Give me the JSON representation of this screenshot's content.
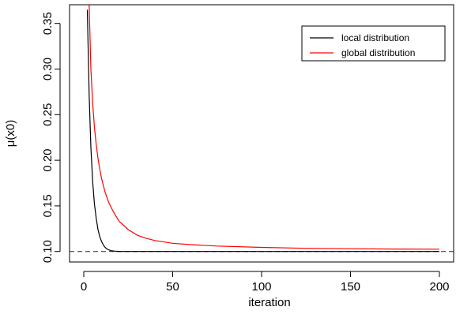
{
  "chart_data": {
    "type": "line",
    "title": "",
    "xlabel": "iteration",
    "ylabel": "μ(x0)",
    "xlim": [
      -8,
      208
    ],
    "ylim": [
      0.0885,
      0.3705
    ],
    "x_ticks": [
      0,
      50,
      100,
      150,
      200
    ],
    "x_tick_labels": [
      "0",
      "50",
      "100",
      "150",
      "200"
    ],
    "y_ticks": [
      0.1,
      0.15,
      0.2,
      0.25,
      0.3,
      0.35
    ],
    "y_tick_labels": [
      "0.10",
      "0.15",
      "0.20",
      "0.25",
      "0.30",
      "0.35"
    ],
    "grid": false,
    "legend_position": "top-right",
    "reference_line": {
      "y": 0.1,
      "color": "#3333cc",
      "style": "dashed"
    },
    "series": [
      {
        "name": "local distribution",
        "color": "#000000",
        "x": [
          2,
          3,
          4,
          5,
          6,
          7,
          8,
          9,
          10,
          11,
          12,
          13,
          14,
          15,
          16,
          17,
          18,
          20,
          25,
          30,
          40,
          50,
          75,
          100,
          125,
          150,
          175,
          200
        ],
        "y": [
          0.365,
          0.272,
          0.214,
          0.176,
          0.152,
          0.136,
          0.124,
          0.116,
          0.111,
          0.107,
          0.1045,
          0.1028,
          0.1018,
          0.1011,
          0.1007,
          0.1004,
          0.1003,
          0.1001,
          0.1,
          0.1,
          0.1,
          0.1,
          0.1,
          0.1,
          0.1,
          0.1,
          0.1,
          0.1
        ]
      },
      {
        "name": "global distribution",
        "color": "#ff0000",
        "x": [
          3,
          4,
          5,
          6,
          7,
          8,
          9,
          10,
          12,
          14,
          16,
          18,
          20,
          25,
          30,
          35,
          40,
          50,
          60,
          75,
          100,
          125,
          150,
          175,
          200
        ],
        "y": [
          0.37,
          0.3,
          0.262,
          0.236,
          0.217,
          0.202,
          0.19,
          0.18,
          0.165,
          0.154,
          0.146,
          0.139,
          0.133,
          0.124,
          0.118,
          0.1145,
          0.112,
          0.109,
          0.1075,
          0.106,
          0.1045,
          0.1035,
          0.103,
          0.1027,
          0.1025
        ]
      }
    ]
  }
}
